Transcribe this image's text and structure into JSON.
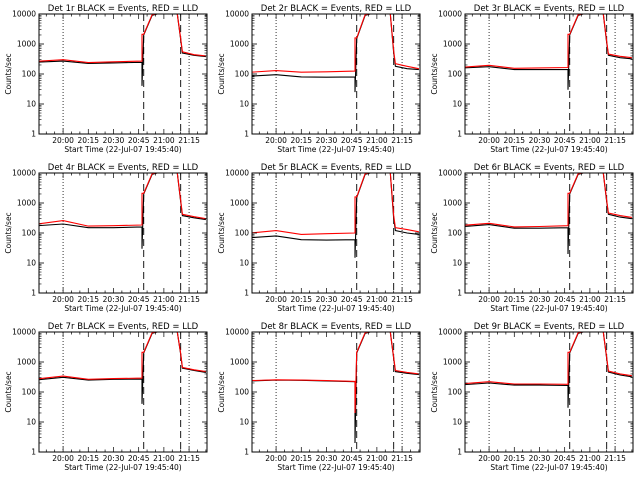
{
  "chart_data": {
    "type": "line",
    "layout": "3x3 grid of panels",
    "yscale": "log",
    "ylim": [
      1,
      10000
    ],
    "y_ticks": [
      1,
      10,
      100,
      1000,
      10000
    ],
    "y_tick_labels": [
      "1",
      "10",
      "100",
      "1000",
      "10000"
    ],
    "xlim": [
      "19:45:40",
      "21:25:40"
    ],
    "x_ticks": [
      "20:00",
      "20:15",
      "20:30",
      "20:45",
      "21:00",
      "21:15"
    ],
    "xlabel": "Start Time (22-Jul-07 19:45:40)",
    "ylabel": "Counts/sec",
    "dotted_vlines": [
      "20:00",
      "21:15"
    ],
    "dashed_vlines": [
      "20:48",
      "21:10"
    ],
    "colors": {
      "events": "#000000",
      "lld": "#ff0000",
      "background": "#ffffff"
    },
    "x_samples": [
      "19:45",
      "20:00",
      "20:15",
      "20:30",
      "20:47",
      "20:47",
      "20:48",
      "20:53",
      "20:56",
      "21:02",
      "21:08",
      "21:10",
      "21:11",
      "21:18",
      "21:25"
    ],
    "panels": [
      {
        "title": "Det 1r BLACK = Events, RED = LLD",
        "series": [
          {
            "name": "Events",
            "values": [
              250,
              270,
              225,
              235,
              245,
              40,
              2000,
              9000,
              10000,
              10000,
              10000,
              1400,
              500,
              420,
              380
            ]
          },
          {
            "name": "LLD",
            "values": [
              265,
              300,
              240,
              255,
              270,
              2100,
              2100,
              9500,
              10000,
              10000,
              10000,
              1500,
              550,
              440,
              400
            ]
          }
        ]
      },
      {
        "title": "Det 2r BLACK = Events, RED = LLD",
        "series": [
          {
            "name": "Events",
            "values": [
              85,
              95,
              80,
              78,
              80,
              25,
              1500,
              9000,
              10000,
              10000,
              10000,
              500,
              180,
              150,
              140
            ]
          },
          {
            "name": "LLD",
            "values": [
              115,
              130,
              115,
              118,
              125,
              1600,
              1600,
              9500,
              10000,
              10000,
              10000,
              580,
              220,
              180,
              150
            ]
          }
        ]
      },
      {
        "title": "Det 3r BLACK = Events, RED = LLD",
        "series": [
          {
            "name": "Events",
            "values": [
              160,
              175,
              140,
              140,
              140,
              30,
              2000,
              9000,
              10000,
              10000,
              10000,
              1100,
              420,
              350,
              320
            ]
          },
          {
            "name": "LLD",
            "values": [
              170,
              195,
              155,
              160,
              165,
              2100,
              2100,
              9500,
              10000,
              10000,
              10000,
              1200,
              460,
              390,
              350
            ]
          }
        ]
      },
      {
        "title": "Det 4r BLACK = Events, RED = LLD",
        "series": [
          {
            "name": "Events",
            "values": [
              175,
              200,
              150,
              150,
              160,
              30,
              2000,
              9000,
              10000,
              10000,
              10000,
              1100,
              380,
              320,
              280
            ]
          },
          {
            "name": "LLD",
            "values": [
              200,
              260,
              170,
              175,
              185,
              2100,
              2100,
              9500,
              10000,
              10000,
              10000,
              1200,
              420,
              350,
              300
            ]
          }
        ]
      },
      {
        "title": "Det 5r BLACK = Events, RED = LLD",
        "series": [
          {
            "name": "Events",
            "values": [
              70,
              80,
              60,
              58,
              60,
              15,
              1500,
              9000,
              10000,
              10000,
              10000,
              300,
              120,
              100,
              90
            ]
          },
          {
            "name": "LLD",
            "values": [
              100,
              120,
              90,
              95,
              100,
              1600,
              1600,
              9500,
              10000,
              10000,
              10000,
              380,
              150,
              130,
              110
            ]
          }
        ]
      },
      {
        "title": "Det 6r BLACK = Events, RED = LLD",
        "series": [
          {
            "name": "Events",
            "values": [
              165,
              190,
              145,
              145,
              150,
              20,
              2000,
              9000,
              10000,
              10000,
              10000,
              1100,
              420,
              340,
              300
            ]
          },
          {
            "name": "LLD",
            "values": [
              180,
              210,
              160,
              165,
              175,
              2100,
              2100,
              9500,
              10000,
              10000,
              10000,
              1200,
              460,
              380,
              330
            ]
          }
        ]
      },
      {
        "title": "Det 7r BLACK = Events, RED = LLD",
        "series": [
          {
            "name": "Events",
            "values": [
              255,
              310,
              250,
              265,
              270,
              40,
              2000,
              9000,
              10000,
              10000,
              10000,
              1800,
              620,
              520,
              450
            ]
          },
          {
            "name": "LLD",
            "values": [
              275,
              340,
              265,
              280,
              290,
              2100,
              2100,
              9500,
              10000,
              10000,
              10000,
              1900,
              660,
              550,
              480
            ]
          }
        ]
      },
      {
        "title": "Det 8r BLACK = Events, RED = LLD",
        "series": [
          {
            "name": "Events",
            "values": [
              235,
              250,
              245,
              235,
              220,
              2,
              2000,
              9000,
              10000,
              10000,
              10000,
              1300,
              480,
              420,
              380
            ]
          },
          {
            "name": "LLD",
            "values": [
              240,
              255,
              250,
              240,
              225,
              20,
              2100,
              9500,
              10000,
              10000,
              10000,
              1400,
              520,
              450,
              400
            ]
          }
        ]
      },
      {
        "title": "Det 9r BLACK = Events, RED = LLD",
        "series": [
          {
            "name": "Events",
            "values": [
              175,
              200,
              170,
              170,
              165,
              30,
              2000,
              9000,
              10000,
              10000,
              10000,
              1300,
              460,
              370,
              320
            ]
          },
          {
            "name": "LLD",
            "values": [
              190,
              220,
              185,
              185,
              180,
              2100,
              2100,
              9500,
              10000,
              10000,
              10000,
              1400,
              500,
              400,
              350
            ]
          }
        ]
      }
    ]
  }
}
